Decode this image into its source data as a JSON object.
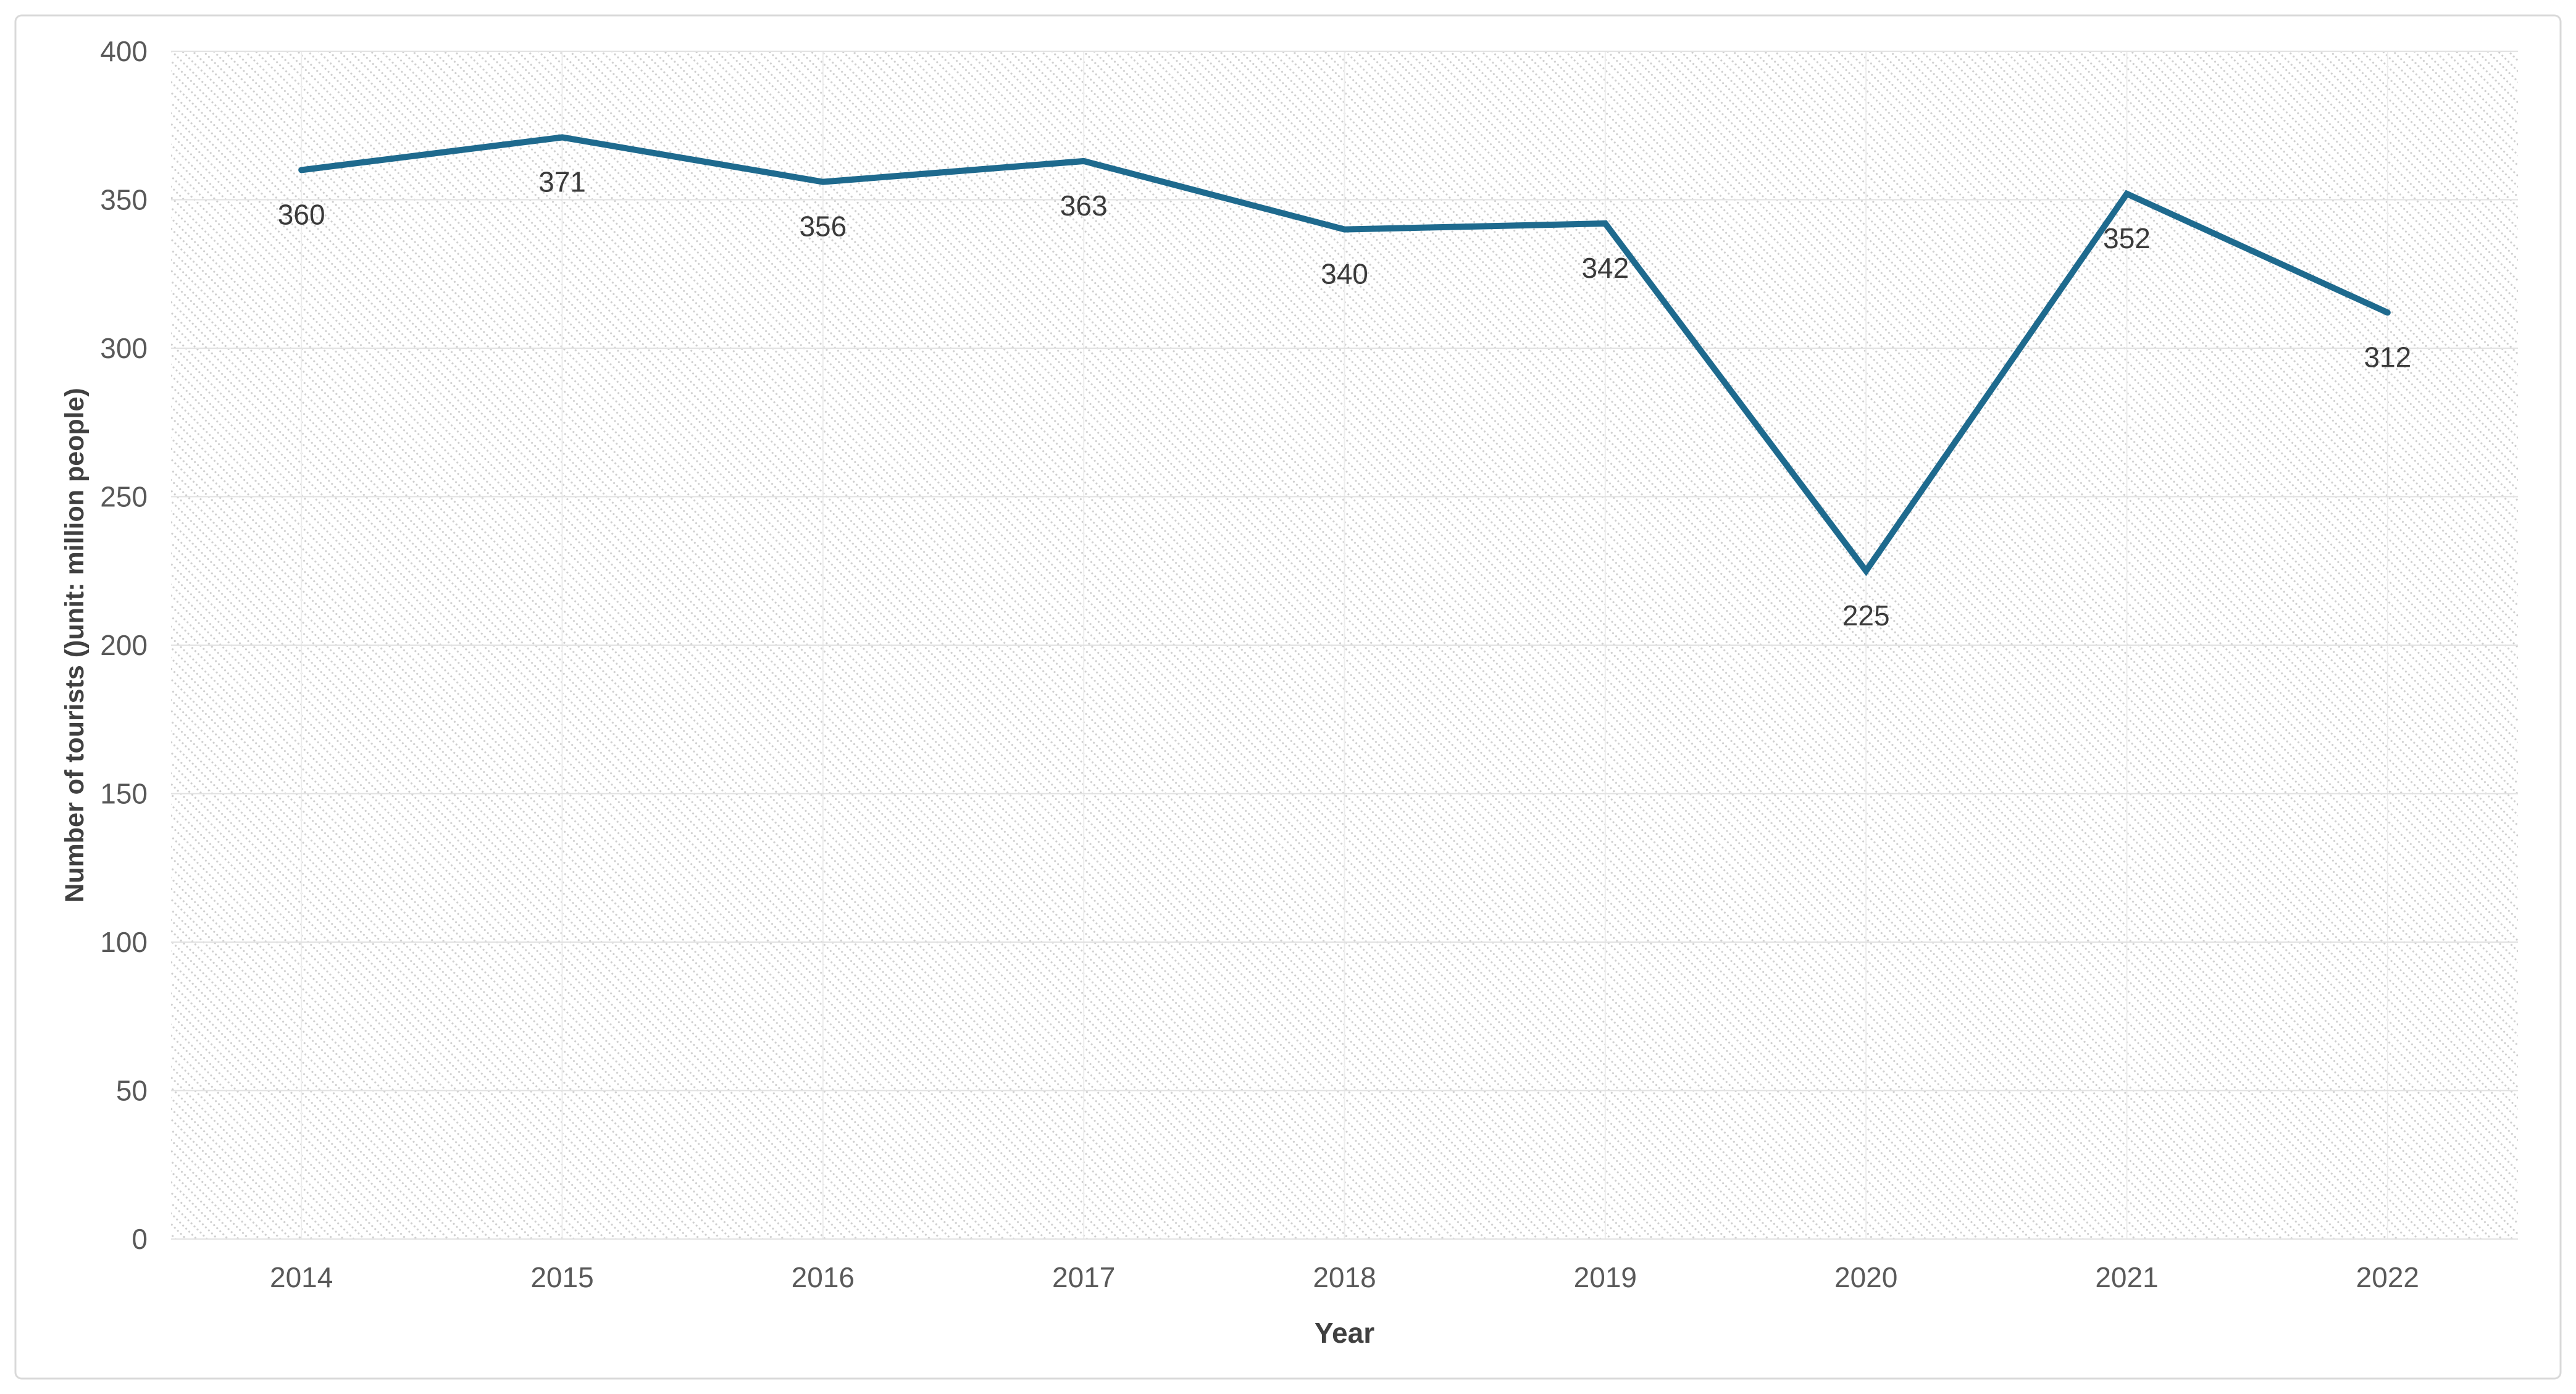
{
  "chart_data": {
    "type": "line",
    "title": "",
    "categories": [
      "2014",
      "2015",
      "2016",
      "2017",
      "2018",
      "2019",
      "2020",
      "2021",
      "2022"
    ],
    "values": [
      360,
      371,
      356,
      363,
      340,
      342,
      225,
      352,
      312
    ],
    "xlabel": "Year",
    "ylabel": "Number of tourists ()unit: million people)",
    "ylim": [
      0,
      400
    ],
    "ytick_step": 50,
    "y_tick_labels": [
      "0",
      "50",
      "100",
      "150",
      "200",
      "250",
      "300",
      "350",
      "400"
    ],
    "grid": "both",
    "legend": "none",
    "data_labels_position": "below",
    "colors": {
      "line": "#1e6a8e",
      "data_label": "#3a3a3a",
      "tick_label": "#595959",
      "axis_title": "#404040",
      "h_gridline": "#e2e2e2",
      "v_gridline": "#ededed",
      "hatch_dot": "#cfcfcf",
      "card_border": "#d9d9d9",
      "background": "#ffffff"
    }
  }
}
